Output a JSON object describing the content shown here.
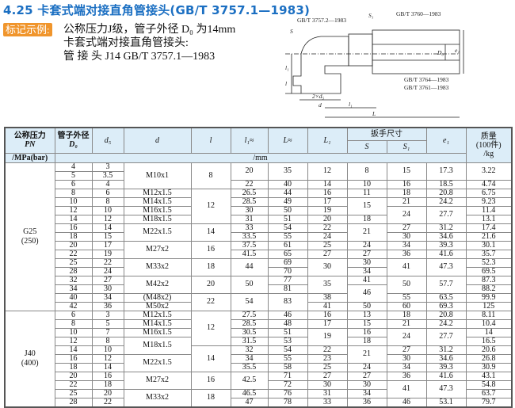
{
  "title": "4.25 卡套式端对接直角管接头(GB/T 3757.1—1983)",
  "example": {
    "tag": "标记示例:",
    "lines": [
      "公称压力J级，管子外径 D₀ 为14mm",
      "卡套式端对接直角管接头:",
      "管 接 头 J14   GB/T 3757.1—1983"
    ]
  },
  "drawing": {
    "labels": {
      "std1": "GB/T 3757.2—1983",
      "std2": "GB/T 3760—1983",
      "std3": "GB/T 3764—1983",
      "std4": "GB/T 3761—1983",
      "S": "S",
      "S1": "S₁",
      "D0": "D₀",
      "e1": "e₁",
      "l1": "l₁",
      "l": "l",
      "d": "d",
      "d5": "2×d₅",
      "l1b": "l₁",
      "L": "L"
    }
  },
  "table": {
    "headers": {
      "pn": "公称压力",
      "pn2": "PN",
      "pn3": "/MPa(bar)",
      "d0": "管子外径",
      "d0b": "D₀",
      "d5": "d₅",
      "d": "d",
      "l": "l",
      "l1": "l₁≈",
      "L": "L≈",
      "L1": "L₁",
      "wrench": "扳手尺寸",
      "S": "S",
      "S1": "S₁",
      "e1": "e₁",
      "mass": "质量",
      "mass2": "(100件)",
      "mass3": "/kg",
      "units": "/mm"
    },
    "rows": [
      [
        "G25\n(250)",
        "4",
        "3",
        "M10x1",
        "8",
        "20",
        "35",
        "12",
        "8",
        "15",
        "17.3",
        "3.22"
      ],
      [
        null,
        "5",
        "3.5",
        null,
        null,
        null,
        null,
        null,
        null,
        null,
        null,
        null
      ],
      [
        null,
        "6",
        "4",
        null,
        null,
        "22",
        "40",
        "14",
        "10",
        "16",
        "18.5",
        "4.74"
      ],
      [
        null,
        "8",
        "6",
        "M12x1.5",
        "12",
        "26.5",
        "44",
        "16",
        "11",
        "18",
        "20.8",
        "6.75"
      ],
      [
        null,
        "10",
        "8",
        "M14x1.5",
        null,
        "28.5",
        "49",
        "17",
        "15",
        "21",
        "24.2",
        "9.23"
      ],
      [
        null,
        "12",
        "10",
        "M16x1.5",
        null,
        "30",
        "50",
        "19",
        null,
        "24",
        "27.7",
        "11.4"
      ],
      [
        null,
        "14",
        "12",
        "M18x1.5",
        null,
        "31",
        "51",
        "20",
        "18",
        null,
        null,
        "13.1"
      ],
      [
        null,
        "16",
        "14",
        "M22x1.5",
        "14",
        "33",
        "54",
        "22",
        "21",
        "27",
        "31.2",
        "17.4"
      ],
      [
        null,
        "18",
        "15",
        null,
        null,
        "33.5",
        "55",
        "24",
        null,
        "30",
        "34.6",
        "21.6"
      ],
      [
        null,
        "20",
        "17",
        "M27x2",
        "16",
        "37.5",
        "61",
        "25",
        "24",
        "34",
        "39.3",
        "30.1"
      ],
      [
        null,
        "22",
        "19",
        null,
        null,
        "41.5",
        "65",
        "27",
        "27",
        "36",
        "41.6",
        "35.7"
      ],
      [
        null,
        "25",
        "22",
        "M33x2",
        "18",
        "44",
        "69",
        "30",
        "30",
        "41",
        "47.3",
        "52.3"
      ],
      [
        null,
        "28",
        "24",
        null,
        null,
        null,
        "70",
        null,
        "34",
        null,
        null,
        "69.5"
      ],
      [
        null,
        "32",
        "27",
        "M42x2",
        "20",
        "50",
        "77",
        "35",
        "41",
        "50",
        "57.7",
        "87.3"
      ],
      [
        null,
        "34",
        "30",
        null,
        null,
        null,
        "81",
        null,
        "46",
        null,
        null,
        "88.2"
      ],
      [
        null,
        "40",
        "34",
        "(M48x2)",
        "22",
        "54",
        "83",
        "38",
        null,
        "55",
        "63.5",
        "99.9"
      ],
      [
        null,
        "42",
        "36",
        "M50x2",
        null,
        null,
        null,
        "41",
        "50",
        "60",
        "69.3",
        "125"
      ],
      [
        "J40\n(400)",
        "6",
        "3",
        "M12x1.5",
        "12",
        "27.5",
        "46",
        "16",
        "13",
        "18",
        "20.8",
        "8.11"
      ],
      [
        null,
        "8",
        "5",
        "M14x1.5",
        null,
        "28.5",
        "48",
        "17",
        "15",
        "21",
        "24.2",
        "10.4"
      ],
      [
        null,
        "10",
        "7",
        "M16x1.5",
        null,
        "30.5",
        "51",
        "19",
        "16",
        "24",
        "27.7",
        "14"
      ],
      [
        null,
        "12",
        "8",
        "M18x1.5",
        null,
        "31.5",
        "53",
        null,
        "18",
        null,
        null,
        "16.5"
      ],
      [
        null,
        "14",
        "10",
        null,
        "14",
        "32",
        "54",
        "22",
        "21",
        "27",
        "31.2",
        "20.6"
      ],
      [
        null,
        "16",
        "12",
        "M22x1.5",
        null,
        "34",
        "55",
        "23",
        null,
        "30",
        "34.6",
        "26.8"
      ],
      [
        null,
        "18",
        "14",
        null,
        null,
        "35.5",
        "58",
        "25",
        "24",
        "34",
        "39.3",
        "30.9"
      ],
      [
        null,
        "20",
        "16",
        "M27x2",
        "16",
        "42.5",
        "71",
        "27",
        "27",
        "36",
        "41.6",
        "43.1"
      ],
      [
        null,
        "22",
        "18",
        null,
        null,
        null,
        "72",
        "30",
        "30",
        "41",
        "47.3",
        "54.8"
      ],
      [
        null,
        "25",
        "20",
        "M33x2",
        "18",
        "46.5",
        "76",
        "31",
        "34",
        null,
        null,
        "63.7"
      ],
      [
        null,
        "28",
        "22",
        null,
        null,
        "47",
        "78",
        "33",
        "36",
        "46",
        "53.1",
        "79.7"
      ]
    ]
  },
  "colors": {
    "title": "#1b6fc2",
    "tag": "#f0952c",
    "header_bg": "#dcedf8"
  }
}
